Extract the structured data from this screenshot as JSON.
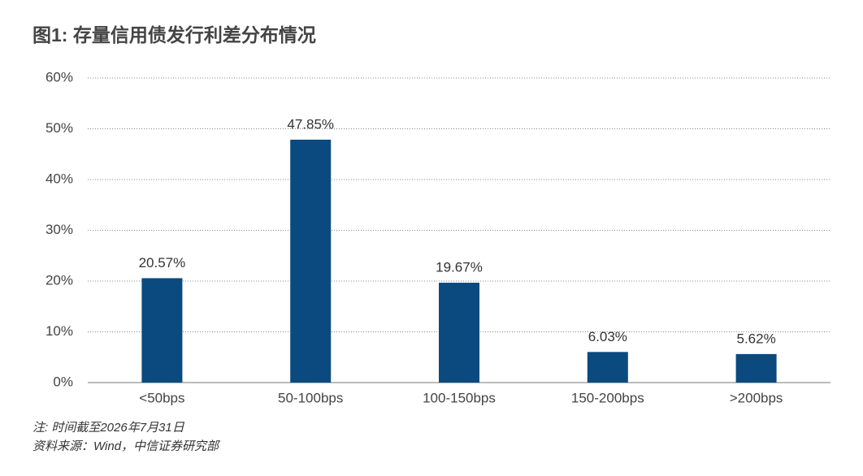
{
  "chart_data": {
    "type": "bar",
    "title": "图1: 存量信用债发行利差分布情况",
    "categories": [
      "<50bps",
      "50-100bps",
      "100-150bps",
      "150-200bps",
      ">200bps"
    ],
    "values": [
      20.57,
      47.85,
      19.67,
      6.03,
      5.62
    ],
    "value_labels": [
      "20.57%",
      "47.85%",
      "19.67%",
      "6.03%",
      "5.62%"
    ],
    "color": "#0b4a7f",
    "ylim": [
      0,
      60
    ],
    "yticks": [
      {
        "value": 0,
        "label": "0%"
      },
      {
        "value": 10,
        "label": "10%"
      },
      {
        "value": 20,
        "label": "20%"
      },
      {
        "value": 30,
        "label": "30%"
      },
      {
        "value": 40,
        "label": "40%"
      },
      {
        "value": 50,
        "label": "50%"
      },
      {
        "value": 60,
        "label": "60%"
      }
    ],
    "grid": true,
    "notes": [
      "注: 时间截至2026年7月31日",
      "资料来源：Wind，中信证券研究部"
    ]
  }
}
